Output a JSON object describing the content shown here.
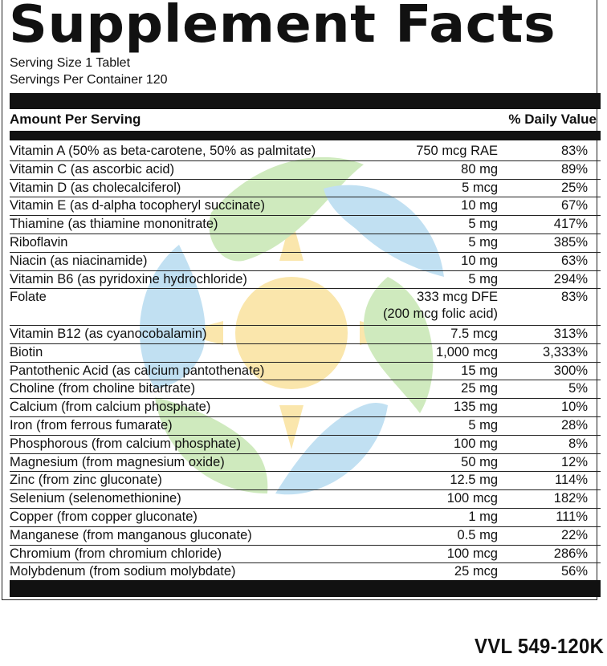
{
  "panel": {
    "title": "Supplement Facts",
    "serving_size": "Serving Size 1 Tablet",
    "servings_per_container": "Servings Per Container 120",
    "header_left": "Amount Per Serving",
    "header_right": "% Daily Value",
    "nutrients": [
      {
        "name": "Vitamin A (50% as beta-carotene, 50% as palmitate)",
        "amount": "750 mcg RAE",
        "dv": "83%"
      },
      {
        "name": "Vitamin C (as ascorbic acid)",
        "amount": "80 mg",
        "dv": "89%"
      },
      {
        "name": "Vitamin D (as cholecalciferol)",
        "amount": "5 mcg",
        "dv": "25%"
      },
      {
        "name": "Vitamin E (as d-alpha tocopheryl succinate)",
        "amount": "10 mg",
        "dv": "67%"
      },
      {
        "name": "Thiamine (as thiamine mononitrate)",
        "amount": "5 mg",
        "dv": "417%"
      },
      {
        "name": "Riboflavin",
        "amount": "5 mg",
        "dv": "385%"
      },
      {
        "name": "Niacin (as niacinamide)",
        "amount": "10 mg",
        "dv": "63%"
      },
      {
        "name": "Vitamin B6 (as pyridoxine hydrochloride)",
        "amount": "5 mg",
        "dv": "294%"
      },
      {
        "name": "Folate",
        "amount": "333 mcg DFE",
        "amount_sub": "(200 mcg folic acid)",
        "dv": "83%"
      },
      {
        "name": "Vitamin B12 (as cyanocobalamin)",
        "amount": "7.5 mcg",
        "dv": "313%"
      },
      {
        "name": "Biotin",
        "amount": "1,000 mcg",
        "dv": "3,333%"
      },
      {
        "name": "Pantothenic Acid (as calcium pantothenate)",
        "amount": "15 mg",
        "dv": "300%"
      },
      {
        "name": "Choline (from choline bitartrate)",
        "amount": "25 mg",
        "dv": "5%"
      },
      {
        "name": "Calcium (from calcium phosphate)",
        "amount": "135 mg",
        "dv": "10%"
      },
      {
        "name": "Iron (from ferrous fumarate)",
        "amount": "5 mg",
        "dv": "28%"
      },
      {
        "name": "Phosphorous (from calcium phosphate)",
        "amount": "100 mg",
        "dv": "8%"
      },
      {
        "name": "Magnesium (from magnesium oxide)",
        "amount": "50 mg",
        "dv": "12%"
      },
      {
        "name": "Zinc (from zinc gluconate)",
        "amount": "12.5 mg",
        "dv": "114%"
      },
      {
        "name": "Selenium (selenomethionine)",
        "amount": "100 mcg",
        "dv": "182%"
      },
      {
        "name": "Copper (from copper gluconate)",
        "amount": "1 mg",
        "dv": "111%"
      },
      {
        "name": "Manganese (from manganous gluconate)",
        "amount": "0.5 mg",
        "dv": "22%"
      },
      {
        "name": "Chromium (from chromium chloride)",
        "amount": "100 mcg",
        "dv": "286%"
      },
      {
        "name": "Molybdenum (from sodium molybdate)",
        "amount": "25 mcg",
        "dv": "56%"
      }
    ]
  },
  "product_code": "VVL 549-120K",
  "colors": {
    "text": "#111111",
    "watermark_green": "#9fd17a",
    "watermark_blue": "#8fc8e8",
    "watermark_sun": "#f6d36a"
  },
  "watermark": {
    "icon": "sun-leaves-watermark-icon"
  }
}
